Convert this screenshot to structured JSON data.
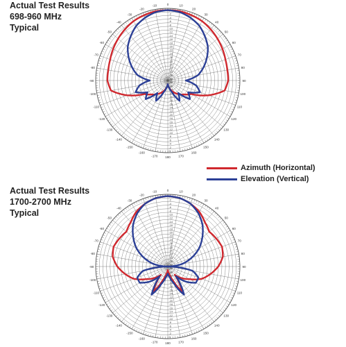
{
  "colors": {
    "azimuth": "#d0282e",
    "elevation": "#2b3f96",
    "grid": "#555555"
  },
  "legend": {
    "azimuth_label": "Azimuth (Horizontal)",
    "elevation_label": "Elevation (Vertical)"
  },
  "chart_data": [
    {
      "type": "polar-line",
      "title": [
        "Actual Test Results",
        "698-960 MHz",
        "Typical"
      ],
      "angle_ticks": [
        "0",
        "10",
        "20",
        "30",
        "40",
        "50",
        "60",
        "70",
        "80",
        "90",
        "100",
        "110",
        "120",
        "130",
        "140",
        "150",
        "160",
        "170",
        "180",
        "-170",
        "-160",
        "-150",
        "-140",
        "-130",
        "-120",
        "-110",
        "-100",
        "-90",
        "-80",
        "-70",
        "-60",
        "-50",
        "-40",
        "-30",
        "-20",
        "-10"
      ],
      "radial_ticks_db": [
        "0",
        "-2",
        "-4",
        "-6",
        "-8",
        "-10",
        "-12",
        "-14",
        "-16",
        "-18",
        "-20",
        "-22",
        "-24",
        "-26",
        "-28",
        "-30",
        "-32",
        "-34",
        "-36",
        "-38",
        "-40"
      ],
      "series": [
        {
          "name": "Azimuth (Horizontal)",
          "angles": [
            0,
            10,
            20,
            30,
            40,
            50,
            60,
            70,
            80,
            90,
            100,
            110,
            120,
            130,
            140,
            150,
            160,
            170,
            180,
            190,
            200,
            210,
            220,
            230,
            240,
            250,
            260,
            270,
            280,
            290,
            300,
            310,
            320,
            330,
            340,
            350
          ],
          "gain_db": [
            -1,
            -1,
            -1.5,
            -2,
            -3,
            -4,
            -5,
            -6,
            -6.5,
            -6.5,
            -8,
            -16,
            -25,
            -28,
            -30,
            -32,
            -34,
            -36,
            -38,
            -36,
            -34,
            -32,
            -30,
            -28,
            -25,
            -16,
            -8,
            -6.5,
            -6.5,
            -6,
            -5,
            -4,
            -3,
            -2,
            -1.5,
            -1
          ]
        },
        {
          "name": "Elevation (Vertical)",
          "angles": [
            0,
            10,
            20,
            30,
            40,
            50,
            60,
            70,
            80,
            90,
            100,
            110,
            120,
            130,
            140,
            150,
            160,
            170,
            180,
            190,
            200,
            210,
            220,
            230,
            240,
            250,
            260,
            270,
            280,
            290,
            300,
            310,
            320,
            330,
            340,
            350
          ],
          "gain_db": [
            -1,
            -1.5,
            -3,
            -5,
            -8,
            -11,
            -15,
            -19,
            -23,
            -30,
            -24,
            -21,
            -27,
            -24,
            -31,
            -27,
            -33,
            -36,
            -38,
            -36,
            -33,
            -27,
            -31,
            -24,
            -27,
            -21,
            -24,
            -30,
            -23,
            -19,
            -15,
            -11,
            -8,
            -5,
            -3,
            -1.5
          ]
        }
      ]
    },
    {
      "type": "polar-line",
      "title": [
        "Actual Test Results",
        "1700-2700 MHz",
        "Typical"
      ],
      "angle_ticks": [
        "0",
        "10",
        "20",
        "30",
        "40",
        "50",
        "60",
        "70",
        "80",
        "90",
        "100",
        "110",
        "120",
        "130",
        "140",
        "150",
        "160",
        "170",
        "180",
        "-170",
        "-160",
        "-150",
        "-140",
        "-130",
        "-120",
        "-110",
        "-100",
        "-90",
        "-80",
        "-70",
        "-60",
        "-50",
        "-40",
        "-30",
        "-20",
        "-10"
      ],
      "radial_ticks_db": [
        "0",
        "-2",
        "-4",
        "-6",
        "-8",
        "-10",
        "-12",
        "-14",
        "-16",
        "-18",
        "-20",
        "-22",
        "-24",
        "-26",
        "-28",
        "-30",
        "-32",
        "-34",
        "-36",
        "-38",
        "-40"
      ],
      "series": [
        {
          "name": "Azimuth (Horizontal)",
          "angles": [
            0,
            10,
            20,
            30,
            40,
            50,
            60,
            70,
            80,
            90,
            100,
            110,
            120,
            130,
            140,
            150,
            160,
            170,
            180,
            190,
            200,
            210,
            220,
            230,
            240,
            250,
            260,
            270,
            280,
            290,
            300,
            310,
            320,
            330,
            340,
            350
          ],
          "gain_db": [
            -1,
            -1.5,
            -3,
            -5,
            -8,
            -10,
            -9,
            -8,
            -9,
            -12,
            -16,
            -20,
            -26,
            -30,
            -34,
            -24,
            -32,
            -36,
            -38,
            -36,
            -32,
            -24,
            -34,
            -30,
            -26,
            -20,
            -16,
            -12,
            -9,
            -8,
            -9,
            -10,
            -8,
            -5,
            -3,
            -1.5
          ]
        },
        {
          "name": "Elevation (Vertical)",
          "angles": [
            0,
            10,
            20,
            30,
            40,
            50,
            60,
            70,
            80,
            90,
            100,
            110,
            120,
            130,
            140,
            150,
            160,
            170,
            180,
            190,
            200,
            210,
            220,
            230,
            240,
            250,
            260,
            270,
            280,
            290,
            300,
            310,
            320,
            330,
            340,
            350
          ],
          "gain_db": [
            -1,
            -1.5,
            -3,
            -6,
            -10,
            -15,
            -20,
            -26,
            -32,
            -40,
            -26,
            -22,
            -22,
            -27,
            -33,
            -22,
            -30,
            -34,
            -36,
            -34,
            -30,
            -22,
            -33,
            -27,
            -22,
            -22,
            -26,
            -40,
            -32,
            -26,
            -20,
            -15,
            -10,
            -6,
            -3,
            -1.5
          ]
        }
      ]
    }
  ]
}
